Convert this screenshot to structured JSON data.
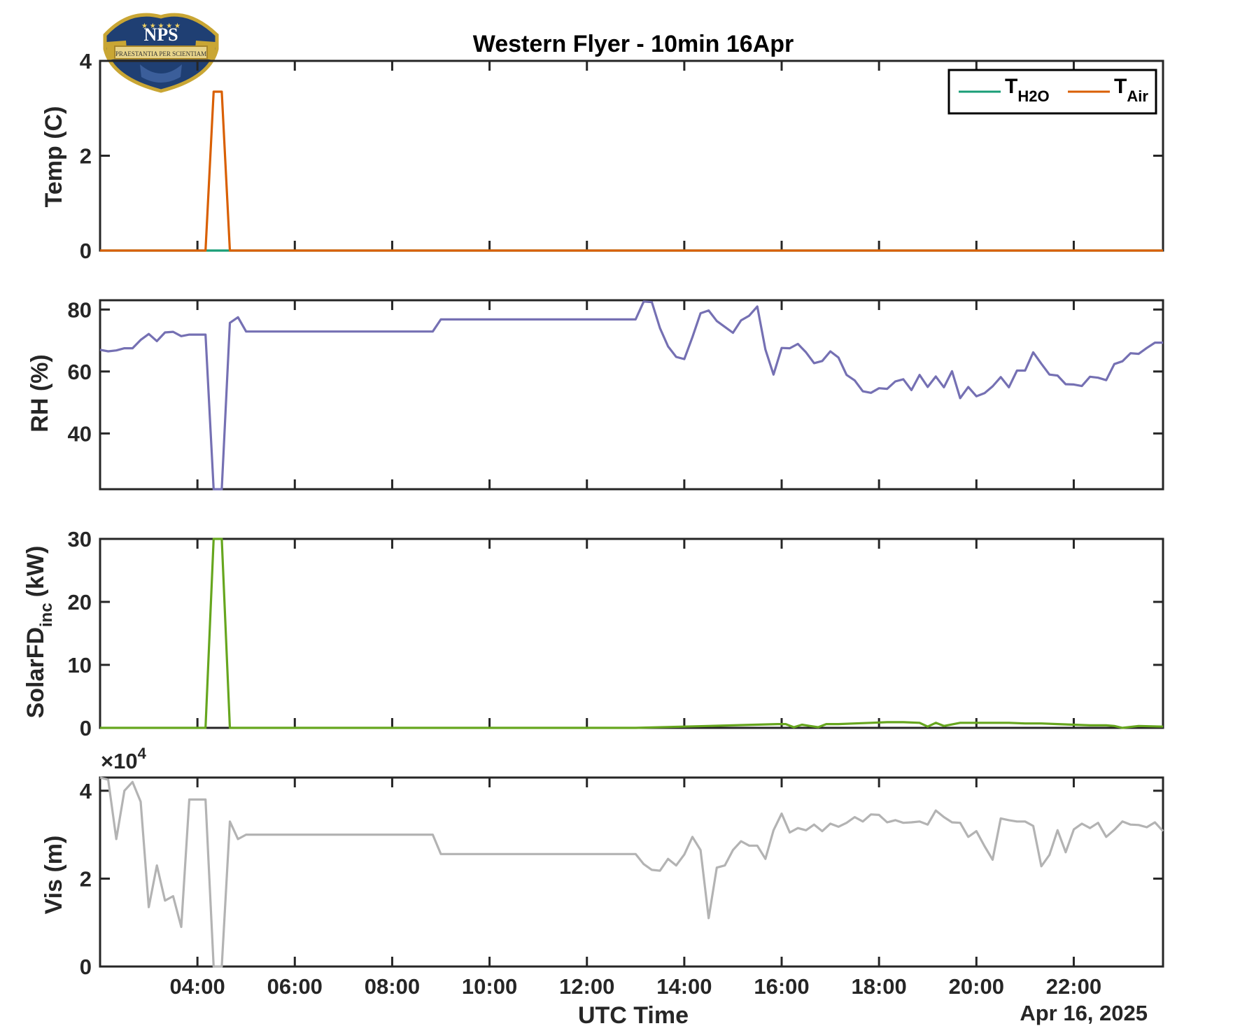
{
  "title": "Western Flyer - 10min 16Apr",
  "xlabel": "UTC Time",
  "date_label": "Apr 16, 2025",
  "logo": {
    "text": "NPS",
    "motto": "PRAESTANTIA PER SCIENTIAM"
  },
  "colors": {
    "t_h2o": "#1a9e77",
    "t_air": "#d95f02",
    "rh": "#7570b3",
    "solar": "#66a61e",
    "vis": "#b3b3b3",
    "axis": "#262626"
  },
  "chart_data": [
    {
      "type": "line",
      "panel": "temp",
      "ylabel": "Temp (C)",
      "ylim": [
        0,
        4
      ],
      "yticks": [
        0,
        2,
        4
      ],
      "xlim": [
        "02:00",
        "23:50"
      ],
      "xtick_labels": [
        "04:00",
        "06:00",
        "08:00",
        "10:00",
        "12:00",
        "14:00",
        "16:00",
        "18:00",
        "20:00",
        "22:00"
      ],
      "legend": {
        "placement": "top-right",
        "entries": [
          {
            "main": "T",
            "sub": "H2O"
          },
          {
            "main": "T",
            "sub": "Air"
          }
        ]
      },
      "series": [
        {
          "name": "TH2O",
          "x": [
            "02:00",
            "04:10",
            "04:40",
            "23:50"
          ],
          "y": [
            0,
            0,
            0,
            0
          ]
        },
        {
          "name": "TAir",
          "x": [
            "02:00",
            "04:10",
            "04:20",
            "04:30",
            "04:40",
            "23:50"
          ],
          "y": [
            0,
            0,
            3.35,
            3.35,
            0,
            0
          ]
        }
      ]
    },
    {
      "type": "line",
      "panel": "rh",
      "ylabel": "RH (%)",
      "ylim": [
        22,
        83
      ],
      "yticks": [
        40,
        60,
        80
      ],
      "series": [
        {
          "x": [
            "02:00",
            "02:10",
            "02:20",
            "02:30",
            "02:40",
            "02:50",
            "03:00",
            "03:10",
            "03:20",
            "03:30",
            "03:40",
            "03:50",
            "04:00",
            "04:10",
            "04:20",
            "04:30",
            "04:40",
            "04:50",
            "05:00",
            "05:10",
            "08:50",
            "09:00",
            "13:00",
            "13:10",
            "13:20",
            "13:30",
            "13:40",
            "13:50",
            "14:00",
            "14:10",
            "14:20",
            "14:30",
            "14:40",
            "14:50",
            "15:00",
            "15:10",
            "15:20",
            "15:30",
            "15:40",
            "15:50",
            "16:00",
            "16:10",
            "16:20",
            "16:30",
            "16:40",
            "16:50",
            "17:00",
            "17:10",
            "17:20",
            "17:30",
            "17:40",
            "17:50",
            "18:00",
            "18:10",
            "18:20",
            "18:30",
            "18:40",
            "18:50",
            "19:00",
            "19:10",
            "19:20",
            "19:30",
            "19:40",
            "19:50",
            "20:00",
            "20:10",
            "20:20",
            "20:30",
            "20:40",
            "20:50",
            "21:00",
            "21:10",
            "21:20",
            "21:30",
            "21:40",
            "21:50",
            "22:00",
            "22:10",
            "22:20",
            "22:30",
            "22:40",
            "22:50",
            "23:00",
            "23:10",
            "23:20",
            "23:30",
            "23:40",
            "23:50"
          ],
          "y": [
            67,
            66.5,
            66.8,
            67.5,
            67.5,
            70.2,
            72.1,
            69.8,
            72.6,
            72.8,
            71.4,
            71.9,
            71.9,
            71.9,
            22,
            22,
            75.7,
            77.5,
            72.9,
            72.9,
            72.9,
            76.8,
            76.8,
            82.6,
            82.4,
            74,
            68.1,
            64.7,
            64,
            71.1,
            78.8,
            79.7,
            76.3,
            74.4,
            72.5,
            76.5,
            78,
            81,
            67.1,
            59,
            67.6,
            67.5,
            68.9,
            66.2,
            62.7,
            63.4,
            66.5,
            64.5,
            58.9,
            57.1,
            53.6,
            53.1,
            54.6,
            54.4,
            56.8,
            57.5,
            54,
            58.9,
            55,
            58.4,
            54.9,
            60.1,
            51.4,
            55,
            52,
            53,
            55.2,
            58.2,
            54.9,
            60.3,
            60.3,
            66.2,
            62.5,
            59,
            58.7,
            55.9,
            55.8,
            55.3,
            58.3,
            58,
            57.2,
            62.4,
            63.3,
            65.9,
            65.7,
            67.6,
            69.3,
            69.3
          ]
        }
      ]
    },
    {
      "type": "line",
      "panel": "solar",
      "ylabel_main": "SolarFD",
      "ylabel_sub": "inc",
      "ylabel_unit": "(kW)",
      "ylim": [
        0,
        30
      ],
      "yticks": [
        0,
        10,
        20,
        30
      ],
      "series": [
        {
          "x": [
            "02:00",
            "04:10",
            "04:20",
            "04:30",
            "04:40",
            "13:00",
            "14:00",
            "15:00",
            "15:55",
            "16:05",
            "16:15",
            "16:25",
            "16:35",
            "16:45",
            "16:55",
            "17:10",
            "17:30",
            "17:50",
            "18:10",
            "18:30",
            "18:50",
            "19:00",
            "19:10",
            "19:20",
            "19:40",
            "20:00",
            "20:20",
            "20:40",
            "21:00",
            "21:20",
            "21:40",
            "22:00",
            "22:20",
            "22:40",
            "22:50",
            "23:00",
            "23:20",
            "23:50"
          ],
          "y": [
            0,
            0,
            30,
            30,
            0,
            0,
            0.2,
            0.4,
            0.6,
            0.6,
            0.1,
            0.5,
            0.3,
            0.1,
            0.6,
            0.6,
            0.7,
            0.8,
            0.9,
            0.9,
            0.8,
            0.2,
            0.8,
            0.3,
            0.8,
            0.8,
            0.8,
            0.8,
            0.7,
            0.7,
            0.6,
            0.5,
            0.4,
            0.4,
            0.3,
            0,
            0.3,
            0.2
          ]
        }
      ]
    },
    {
      "type": "line",
      "panel": "vis",
      "ylabel": "Vis (m)",
      "exponent_label": "×10",
      "exponent_power": "4",
      "ylim": [
        0,
        43000
      ],
      "yticks": [
        0,
        20000,
        40000
      ],
      "ytick_labels": [
        "0",
        "2",
        "4"
      ],
      "series": [
        {
          "x": [
            "02:00",
            "02:10",
            "02:20",
            "02:30",
            "02:40",
            "02:50",
            "03:00",
            "03:10",
            "03:20",
            "03:30",
            "03:40",
            "03:50",
            "04:00",
            "04:10",
            "04:20",
            "04:30",
            "04:40",
            "04:50",
            "05:00",
            "05:10",
            "08:50",
            "09:00",
            "13:00",
            "13:10",
            "13:20",
            "13:30",
            "13:40",
            "13:50",
            "14:00",
            "14:10",
            "14:20",
            "14:30",
            "14:40",
            "14:50",
            "15:00",
            "15:10",
            "15:20",
            "15:30",
            "15:40",
            "15:50",
            "16:00",
            "16:10",
            "16:20",
            "16:30",
            "16:40",
            "16:50",
            "17:00",
            "17:10",
            "17:20",
            "17:30",
            "17:40",
            "17:50",
            "18:00",
            "18:10",
            "18:20",
            "18:30",
            "18:40",
            "18:50",
            "19:00",
            "19:10",
            "19:20",
            "19:30",
            "19:40",
            "19:50",
            "20:00",
            "20:10",
            "20:20",
            "20:30",
            "20:40",
            "20:50",
            "21:00",
            "21:10",
            "21:20",
            "21:30",
            "21:40",
            "21:50",
            "22:00",
            "22:10",
            "22:20",
            "22:30",
            "22:40",
            "22:50",
            "23:00",
            "23:10",
            "23:20",
            "23:30",
            "23:40",
            "23:50"
          ],
          "y": [
            43000,
            42500,
            29000,
            40000,
            42000,
            37500,
            13500,
            23000,
            15000,
            16000,
            9000,
            38000,
            38000,
            38000,
            0,
            0,
            33000,
            29000,
            30000,
            30000,
            30000,
            25600,
            25600,
            23300,
            22000,
            21800,
            24500,
            23000,
            25500,
            29500,
            26500,
            11000,
            22500,
            23000,
            26500,
            28500,
            27500,
            27500,
            24500,
            31000,
            34800,
            30500,
            31500,
            31000,
            32300,
            30800,
            32500,
            31800,
            32700,
            34000,
            33000,
            34600,
            34500,
            32800,
            33300,
            32700,
            32800,
            33000,
            32300,
            35500,
            34000,
            32800,
            32700,
            29500,
            30800,
            27400,
            24300,
            33700,
            33300,
            33000,
            33000,
            32000,
            22800,
            25400,
            31000,
            26000,
            31200,
            32500,
            31500,
            32700,
            29500,
            31100,
            33000,
            32300,
            32200,
            31700,
            32800,
            30800
          ]
        }
      ]
    }
  ]
}
